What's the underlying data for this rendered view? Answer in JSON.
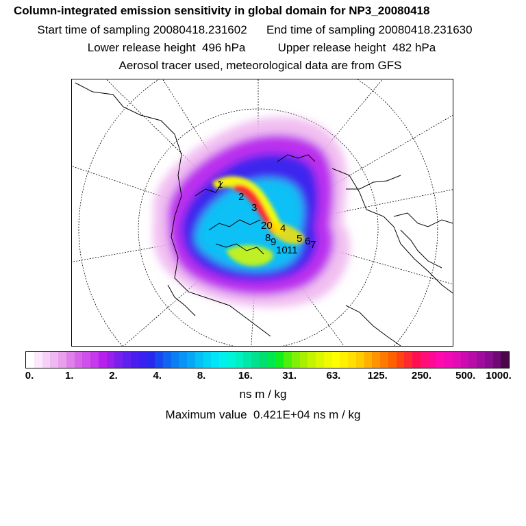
{
  "header": {
    "title": "Column-integrated emission sensitivity in global domain for NP3_20080418",
    "start_label": "Start time of sampling",
    "start_value": "20080418.231602",
    "end_label": "End time of sampling",
    "end_value": "20080418.231630",
    "lower_label": "Lower release height",
    "lower_value": "496 hPa",
    "upper_label": "Upper release height",
    "upper_value": "482 hPa",
    "tracer_line": "Aerosol tracer used, meteorological data are from GFS"
  },
  "map": {
    "projection": "polar stereographic",
    "point_labels": [
      "1",
      "2",
      "3",
      "20",
      "4",
      "5",
      "6",
      "7",
      "8",
      "9",
      "10",
      "11"
    ]
  },
  "colorbar": {
    "tick_labels": [
      "0.",
      "1.",
      "2.",
      "4.",
      "8.",
      "16.",
      "31.",
      "63.",
      "125.",
      "250.",
      "500.",
      "1000."
    ],
    "colors": [
      "#ffffff",
      "#fbe8fb",
      "#f6d0f6",
      "#f0b8f0",
      "#e9a0ec",
      "#e080ea",
      "#d765ea",
      "#cf50ea",
      "#c43aec",
      "#b720ee",
      "#9a20ee",
      "#7a20ee",
      "#5e20ee",
      "#4a1eee",
      "#3a20f2",
      "#2828ee",
      "#1848f0",
      "#1064f2",
      "#0c7ef4",
      "#0894f6",
      "#06a8f6",
      "#04c0f6",
      "#02d4f6",
      "#00e6f6",
      "#00f0ec",
      "#00f4d8",
      "#00f0c2",
      "#00e8a8",
      "#00e08e",
      "#00e070",
      "#00e850",
      "#10ee20",
      "#4cf00c",
      "#80f008",
      "#a8f000",
      "#c4f400",
      "#dcf800",
      "#f0fa00",
      "#ffff00",
      "#fff000",
      "#ffe000",
      "#ffcc00",
      "#ffb000",
      "#ff9400",
      "#ff7a00",
      "#ff6000",
      "#ff4410",
      "#ff2a30",
      "#ff0e50",
      "#ff0e76",
      "#ff0896",
      "#ff0aac",
      "#f20ab6",
      "#e00cb4",
      "#cc0cb0",
      "#b80ca8",
      "#a00c9e",
      "#8a0c8e",
      "#6e0a72",
      "#4a0848"
    ]
  },
  "units": "ns m / kg",
  "max_label": "Maximum value",
  "max_value": "0.421E+04 ns m / kg"
}
